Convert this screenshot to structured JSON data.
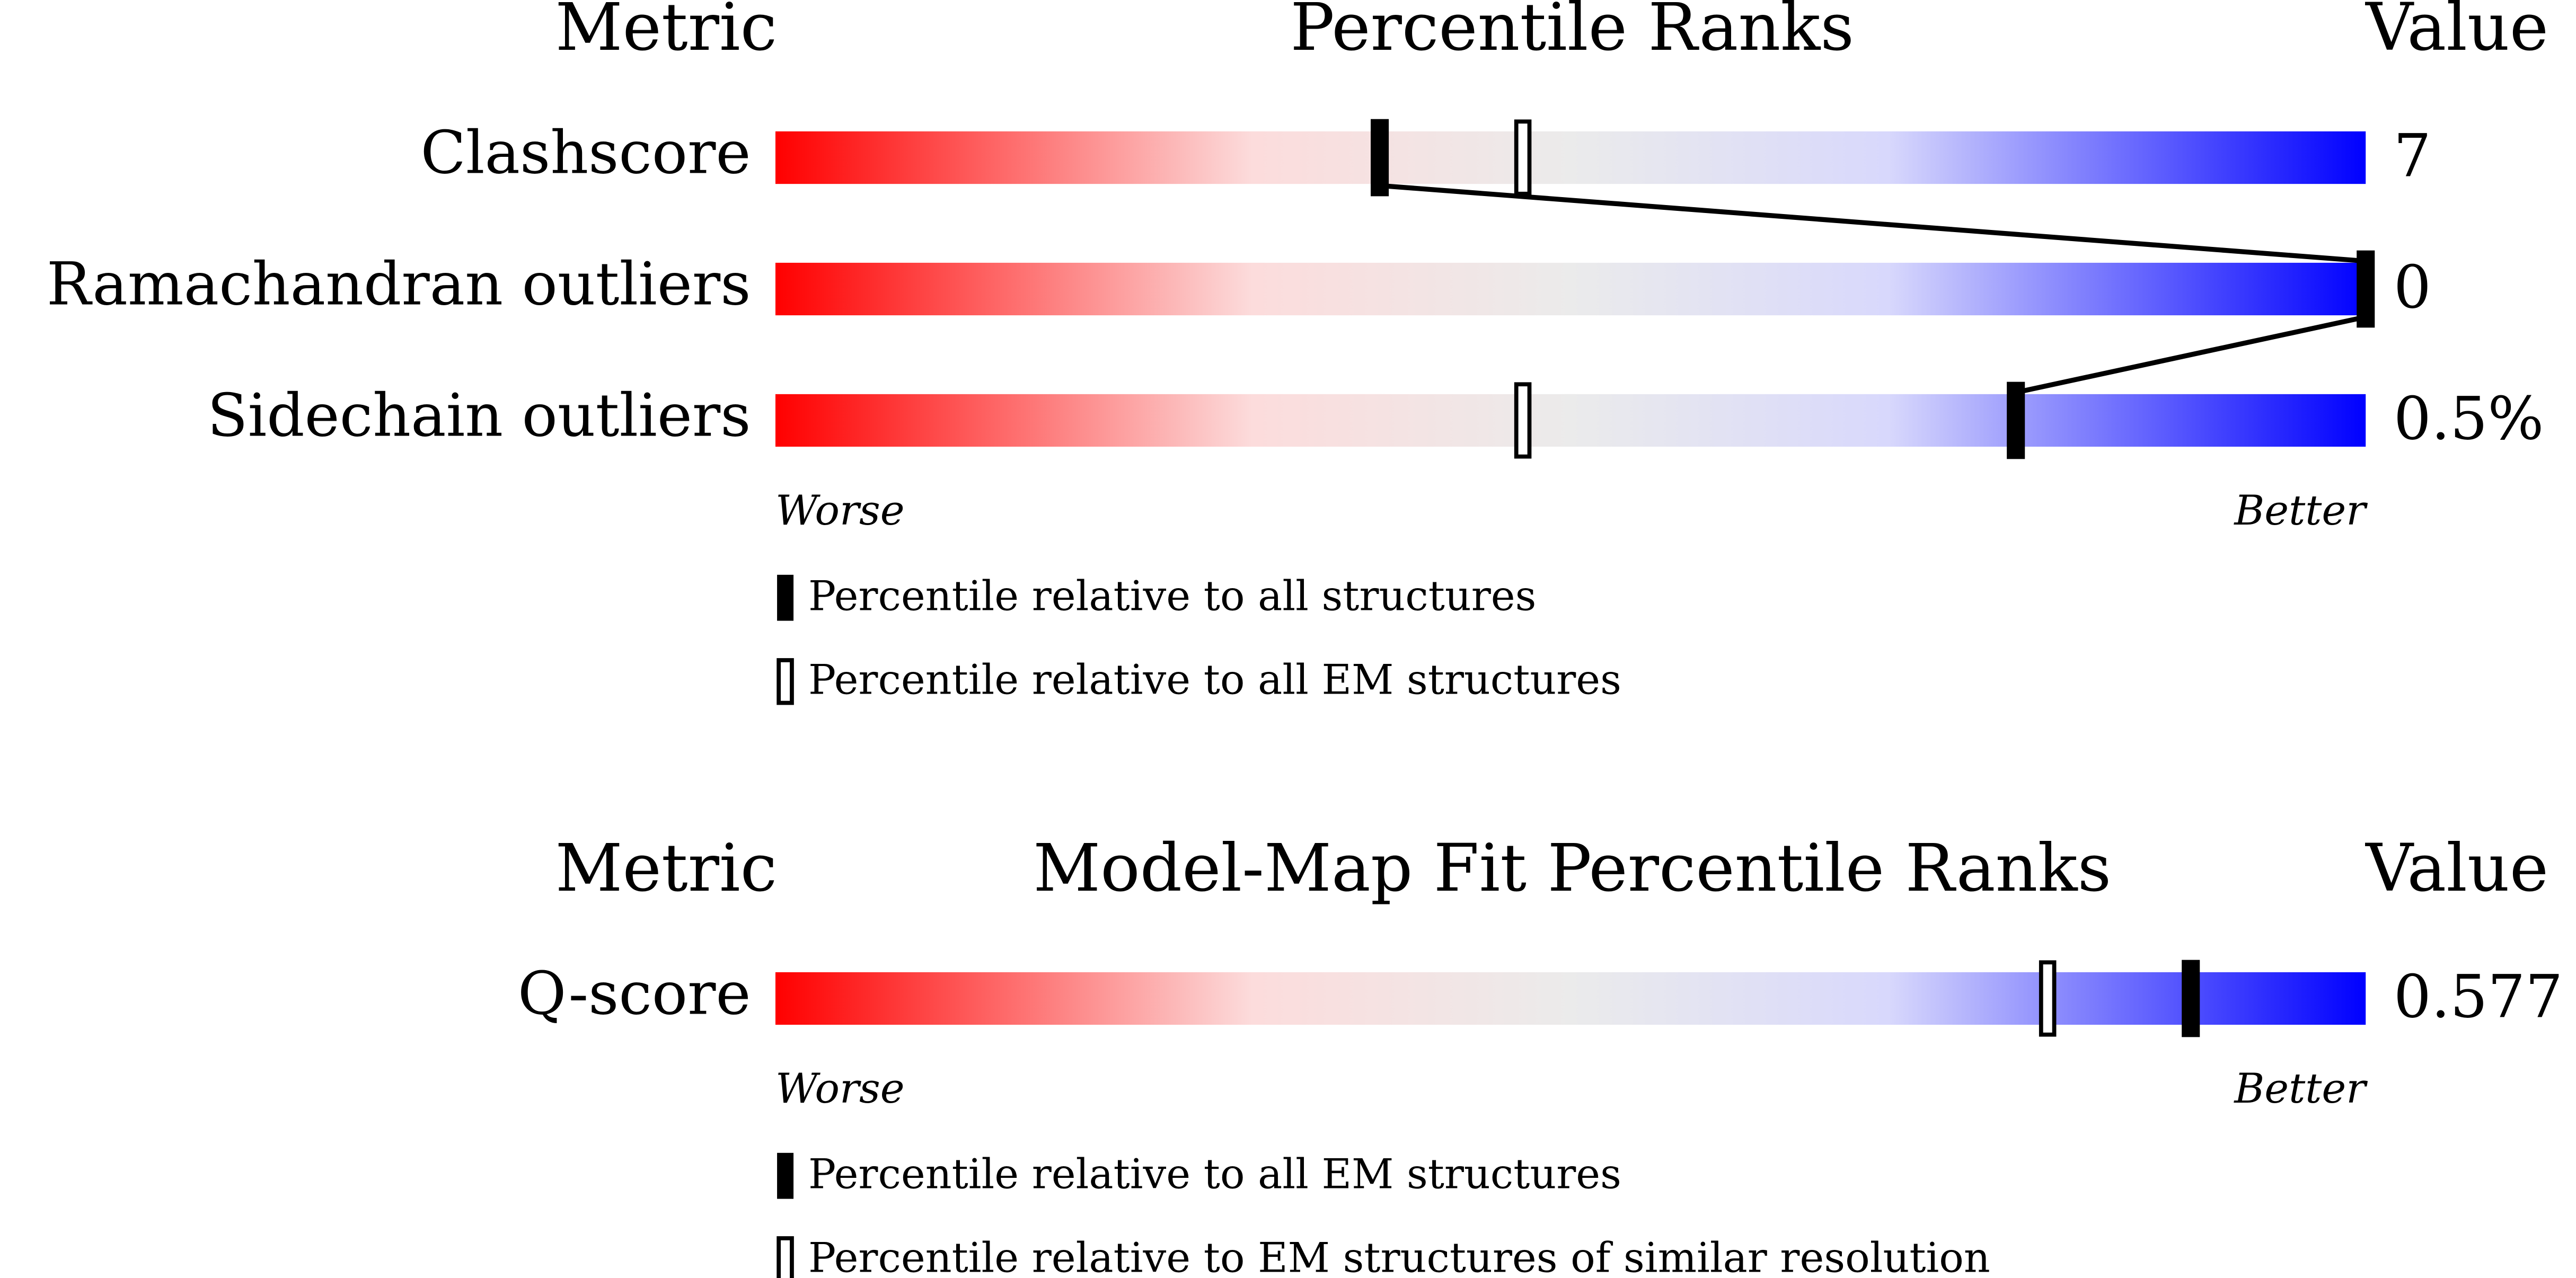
{
  "chart_data": [
    {
      "type": "percentile-slider",
      "metric_header": "Metric",
      "title": "Percentile Ranks",
      "value_header": "Value",
      "categories": [
        "Clashscore",
        "Ramachandran outliers",
        "Sidechain outliers"
      ],
      "metric_values": [
        "7",
        "0",
        "0.5%"
      ],
      "xlim": [
        0,
        100
      ],
      "worse_label": "Worse",
      "better_label": "Better",
      "connect_series": 0,
      "series": [
        {
          "name": "Percentile relative to all structures",
          "style": "filled",
          "color": "#000000",
          "values": [
            38,
            100,
            78
          ]
        },
        {
          "name": "Percentile relative to all EM structures",
          "style": "open",
          "color": "#000000",
          "values": [
            47,
            100,
            47
          ]
        }
      ]
    },
    {
      "type": "percentile-slider",
      "metric_header": "Metric",
      "title": "Model-Map Fit Percentile Ranks",
      "value_header": "Value",
      "categories": [
        "Q-score"
      ],
      "metric_values": [
        "0.577"
      ],
      "xlim": [
        0,
        100
      ],
      "worse_label": "Worse",
      "better_label": "Better",
      "connect_series": 0,
      "series": [
        {
          "name": "Percentile relative to all EM structures",
          "style": "filled",
          "color": "#000000",
          "values": [
            89
          ]
        },
        {
          "name": "Percentile relative to EM structures of similar resolution",
          "style": "open",
          "color": "#000000",
          "values": [
            80
          ]
        }
      ]
    }
  ]
}
